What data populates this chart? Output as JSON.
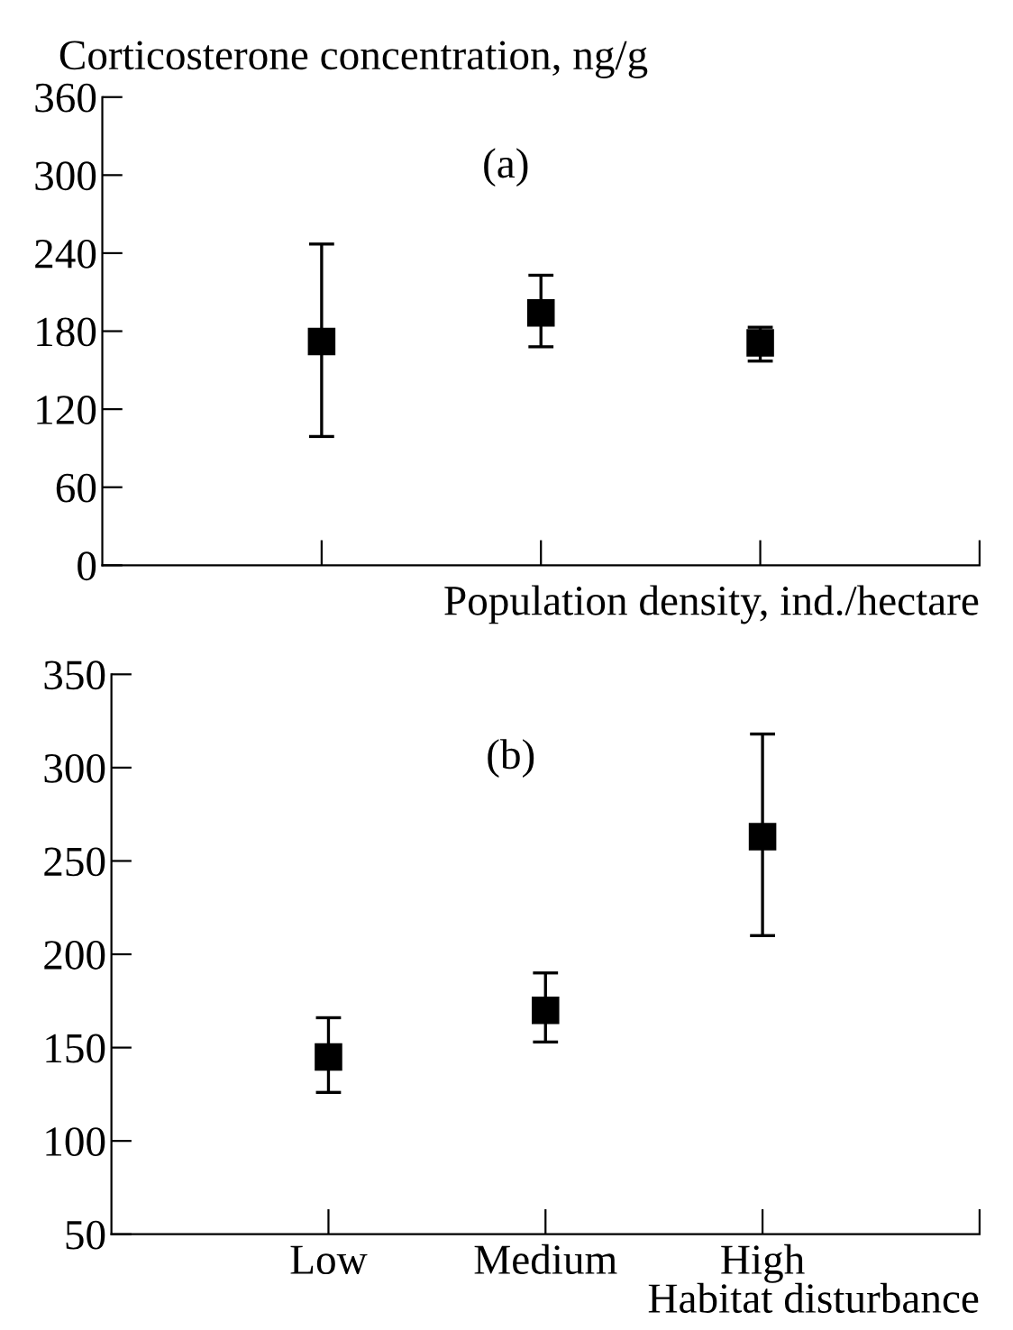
{
  "chart_data": [
    {
      "type": "scatter",
      "ylabel": "Corticosterone concentration, ng/g",
      "xlabel": "Population density, ind./hectare",
      "annotations": [
        "(a)"
      ],
      "categories": [
        null,
        null,
        null
      ],
      "values": [
        172,
        194,
        171
      ],
      "errors": [
        [
          99,
          247
        ],
        [
          168,
          223
        ],
        [
          157,
          183
        ]
      ],
      "color": "#000000",
      "marker": "square",
      "ylim": [
        0,
        360
      ],
      "yticks": [
        0,
        60,
        120,
        180,
        240,
        300,
        360
      ],
      "grid": false,
      "legend": false
    },
    {
      "type": "scatter",
      "xlabel": "Habitat disturbance",
      "annotations": [
        "(b)"
      ],
      "categories": [
        "Low",
        "Medium",
        "High"
      ],
      "values": [
        145,
        170,
        263
      ],
      "errors": [
        [
          126,
          166
        ],
        [
          153,
          190
        ],
        [
          210,
          318
        ]
      ],
      "color": "#000000",
      "marker": "square",
      "ylim": [
        50,
        350
      ],
      "yticks": [
        50,
        100,
        150,
        200,
        250,
        300,
        350
      ],
      "grid": false,
      "legend": false
    }
  ]
}
